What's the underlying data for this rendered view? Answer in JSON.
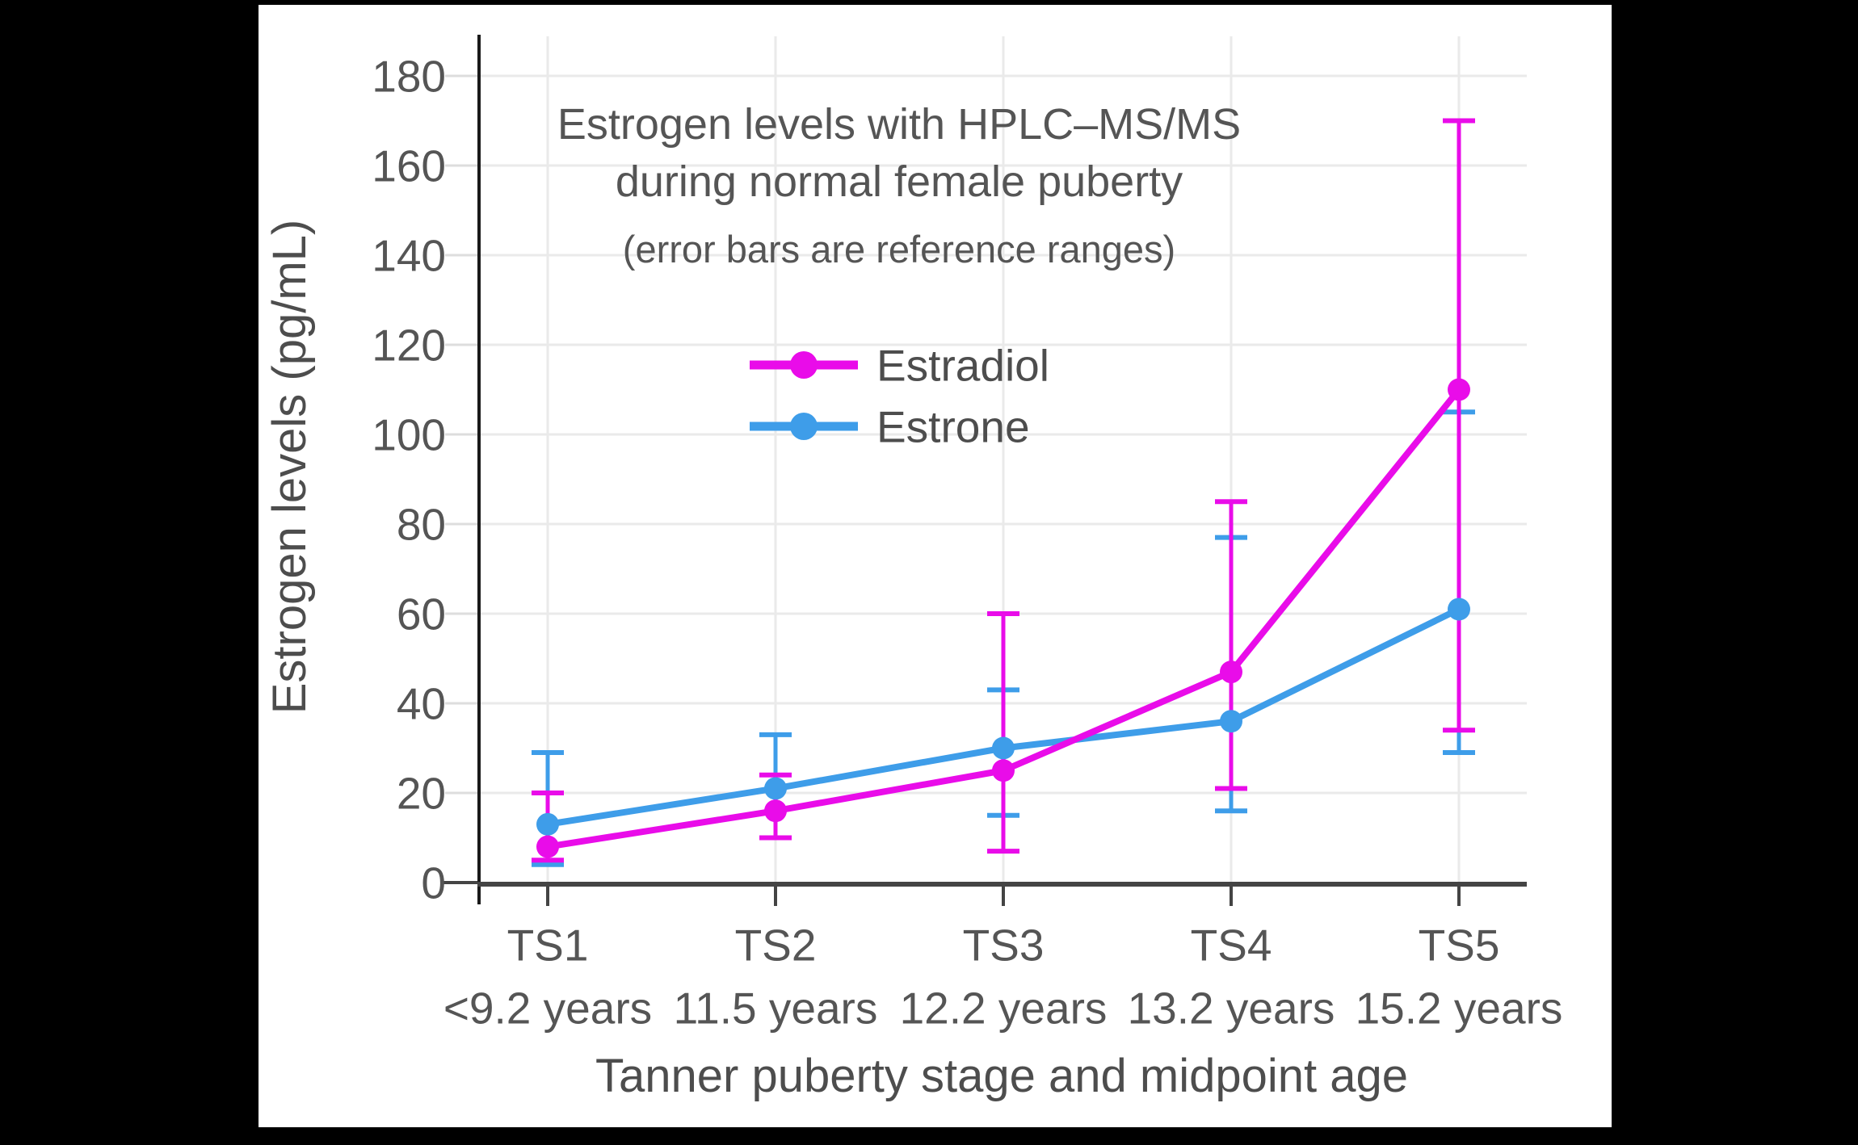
{
  "figure": {
    "background_color": "#000000",
    "panel_color": "#ffffff",
    "text_color": "#555555",
    "grid_color": "#eaeaea",
    "axis_line_color": "#444444",
    "y_axis_line_color": "#1a1a1a"
  },
  "chart_data": {
    "type": "line",
    "title_line1": "Estrogen levels with HPLC–MS/MS",
    "title_line2": "during normal female puberty",
    "subtitle": "(error bars are reference ranges)",
    "xlabel": "Tanner puberty stage and midpoint age",
    "ylabel": "Estrogen levels (pg/mL)",
    "categories": [
      "TS1",
      "TS2",
      "TS3",
      "TS4",
      "TS5"
    ],
    "category_sublabels": [
      "<9.2 years",
      "11.5 years",
      "12.2 years",
      "13.2 years",
      "15.2 years"
    ],
    "yticks": [
      0,
      20,
      40,
      60,
      80,
      100,
      120,
      140,
      160,
      180
    ],
    "ylim": [
      0,
      190
    ],
    "grid": true,
    "legend_position": "inside-upper-center",
    "error_bar_meaning": "absolute reference range endpoints (low/high)",
    "series": [
      {
        "name": "Estradiol",
        "color": "#e90ce9",
        "values": [
          8,
          16,
          25,
          47,
          110
        ],
        "error_low": [
          5,
          10,
          7,
          21,
          34
        ],
        "error_high": [
          20,
          24,
          60,
          85,
          170
        ]
      },
      {
        "name": "Estrone",
        "color": "#3e9de9",
        "values": [
          13,
          21,
          30,
          36,
          61
        ],
        "error_low": [
          4,
          10,
          15,
          16,
          29
        ],
        "error_high": [
          29,
          33,
          43,
          77,
          105
        ]
      }
    ]
  }
}
